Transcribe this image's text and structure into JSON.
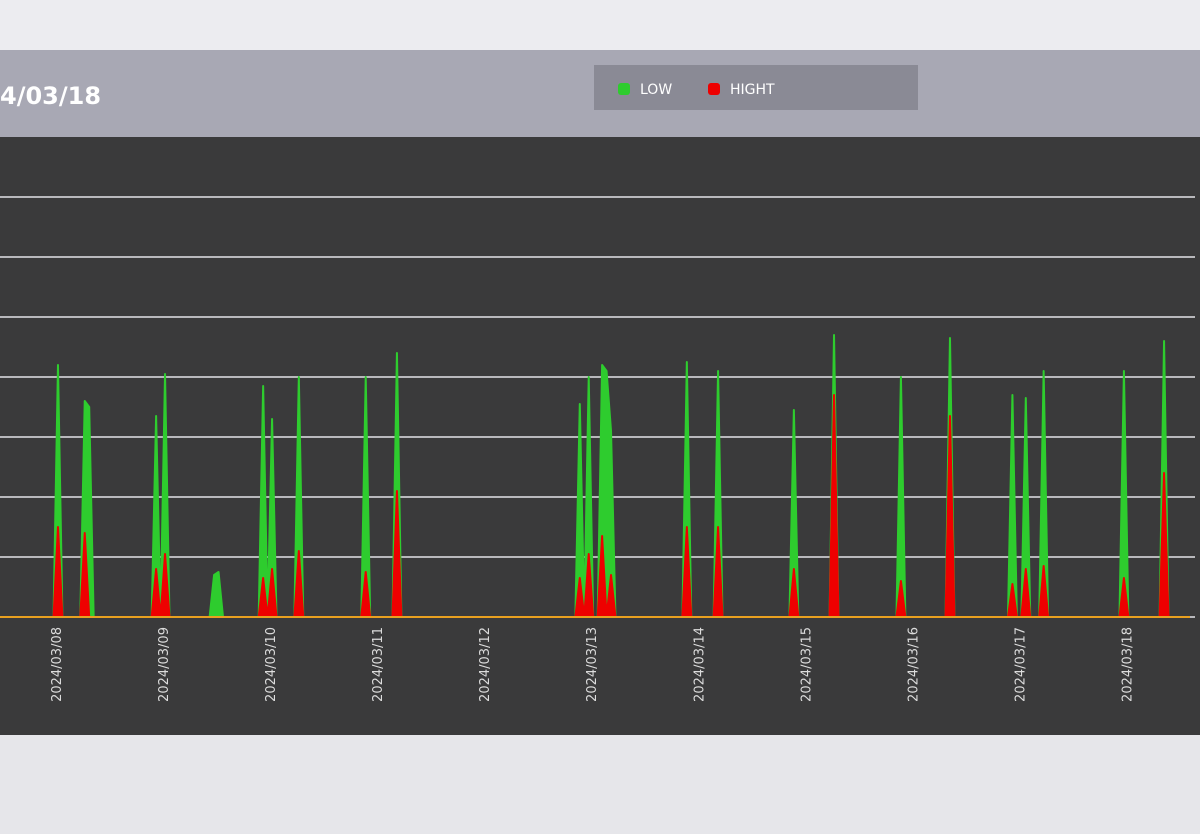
{
  "chart_data": {
    "type": "area",
    "title": "4/03/18",
    "categories": [
      null,
      null,
      null,
      null,
      null,
      null,
      null,
      null,
      null,
      null,
      null,
      null,
      "2024/03/08",
      null,
      null,
      null,
      null,
      null,
      null,
      null,
      null,
      null,
      null,
      null,
      null,
      null,
      null,
      null,
      null,
      null,
      null,
      null,
      null,
      null,
      null,
      null,
      "2024/03/09",
      null,
      null,
      null,
      null,
      null,
      null,
      null,
      null,
      null,
      null,
      null,
      null,
      null,
      null,
      null,
      null,
      null,
      null,
      null,
      null,
      null,
      null,
      null,
      "2024/03/10",
      null,
      null,
      null,
      null,
      null,
      null,
      null,
      null,
      null,
      null,
      null,
      null,
      null,
      null,
      null,
      null,
      null,
      null,
      null,
      null,
      null,
      null,
      null,
      "2024/03/11",
      null,
      null,
      null,
      null,
      null,
      null,
      null,
      null,
      null,
      null,
      null,
      null,
      null,
      null,
      null,
      null,
      null,
      null,
      null,
      null,
      null,
      null,
      null,
      "2024/03/12",
      null,
      null,
      null,
      null,
      null,
      null,
      null,
      null,
      null,
      null,
      null,
      null,
      null,
      null,
      null,
      null,
      null,
      null,
      null,
      null,
      null,
      null,
      null,
      "2024/03/13",
      null,
      null,
      null,
      null,
      null,
      null,
      null,
      null,
      null,
      null,
      null,
      null,
      null,
      null,
      null,
      null,
      null,
      null,
      null,
      null,
      null,
      null,
      null,
      "2024/03/14",
      null,
      null,
      null,
      null,
      null,
      null,
      null,
      null,
      null,
      null,
      null,
      null,
      null,
      null,
      null,
      null,
      null,
      null,
      null,
      null,
      null,
      null,
      null,
      "2024/03/15",
      null,
      null,
      null,
      null,
      null,
      null,
      null,
      null,
      null,
      null,
      null,
      null,
      null,
      null,
      null,
      null,
      null,
      null,
      null,
      null,
      null,
      null,
      null,
      "2024/03/16",
      null,
      null,
      null,
      null,
      null,
      null,
      null,
      null,
      null,
      null,
      null,
      null,
      null,
      null,
      null,
      null,
      null,
      null,
      null,
      null,
      null,
      null,
      null,
      "2024/03/17",
      null,
      null,
      null,
      null,
      null,
      null,
      null,
      null,
      null,
      null,
      null,
      null,
      null,
      null,
      null,
      null,
      null,
      null,
      null,
      null,
      null,
      null,
      null,
      "2024/03/18",
      null,
      null,
      null,
      null,
      null,
      null,
      null,
      null,
      null,
      null,
      null,
      null,
      null,
      null
    ],
    "series": [
      {
        "name": "LOW",
        "color": "#2ecc2e",
        "values": [
          0,
          0,
          0,
          0,
          0,
          0,
          0,
          0,
          0,
          0,
          0,
          0,
          0,
          4.2,
          0,
          0,
          0,
          0,
          0,
          3.6,
          3.5,
          0,
          0,
          0,
          0,
          0,
          0,
          0,
          0,
          0,
          0,
          0,
          0,
          0,
          0,
          3.35,
          0,
          4.05,
          0,
          0,
          0,
          0,
          0,
          0,
          0,
          0,
          0,
          0,
          0.7,
          0.75,
          0,
          0,
          0,
          0,
          0,
          0,
          0,
          0,
          0,
          3.85,
          0,
          3.3,
          0,
          0,
          0,
          0,
          0,
          4,
          0,
          0,
          0,
          0,
          0,
          0,
          0,
          0,
          0,
          0,
          0,
          0,
          0,
          0,
          4,
          0,
          0,
          0,
          0,
          0,
          0,
          4.4,
          0,
          0,
          0,
          0,
          0,
          0,
          0,
          0,
          0,
          0,
          0,
          0,
          0,
          0,
          0,
          0,
          0,
          0,
          0,
          0,
          0,
          0,
          0,
          0,
          0,
          0,
          0,
          0,
          0,
          0,
          0,
          0,
          0,
          0,
          0,
          0,
          0,
          0,
          0,
          0,
          3.55,
          0,
          4,
          0,
          0,
          4.2,
          4.1,
          3.1,
          0,
          0,
          0,
          0,
          0,
          0,
          0,
          0,
          0,
          0,
          0,
          0,
          0,
          0,
          0,
          0,
          4.25,
          0,
          0,
          0,
          0,
          0,
          0,
          4.1,
          0,
          0,
          0,
          0,
          0,
          0,
          0,
          0,
          0,
          0,
          0,
          0,
          0,
          0,
          0,
          0,
          3.45,
          0,
          0,
          0,
          0,
          0,
          0,
          0,
          0,
          4.7,
          0,
          0,
          0,
          0,
          0,
          0,
          0,
          0,
          0,
          0,
          0,
          0,
          0,
          0,
          4,
          0,
          0,
          0,
          0,
          0,
          0,
          0,
          0,
          0,
          0,
          4.65,
          0,
          0,
          0,
          0,
          0,
          0,
          0,
          0,
          0,
          0,
          0,
          0,
          0,
          3.7,
          0,
          0,
          3.65,
          0,
          0,
          0,
          4.1,
          0,
          0,
          0,
          0,
          0,
          0,
          0,
          0,
          0,
          0,
          0,
          0,
          0,
          0,
          0,
          0,
          0,
          4.1,
          0,
          0,
          0,
          0,
          0,
          0,
          0,
          0,
          4.6,
          0,
          0,
          0,
          0,
          0
        ]
      },
      {
        "name": "HIGHT",
        "color": "#ee0000",
        "values": [
          0,
          0,
          0,
          0,
          0,
          0,
          0,
          0,
          0,
          0,
          0,
          0,
          0,
          1.5,
          0,
          0,
          0,
          0,
          0,
          1.4,
          0,
          0,
          0,
          0,
          0,
          0,
          0,
          0,
          0,
          0,
          0,
          0,
          0,
          0,
          0,
          0.8,
          0,
          1.05,
          0,
          0,
          0,
          0,
          0,
          0,
          0,
          0,
          0,
          0,
          0,
          0,
          0,
          0,
          0,
          0,
          0,
          0,
          0,
          0,
          0,
          0.65,
          0,
          0.8,
          0,
          0,
          0,
          0,
          0,
          1.1,
          0,
          0,
          0,
          0,
          0,
          0,
          0,
          0,
          0,
          0,
          0,
          0,
          0,
          0,
          0.75,
          0,
          0,
          0,
          0,
          0,
          0,
          2.1,
          0,
          0,
          0,
          0,
          0,
          0,
          0,
          0,
          0,
          0,
          0,
          0,
          0,
          0,
          0,
          0,
          0,
          0,
          0,
          0,
          0,
          0,
          0,
          0,
          0,
          0,
          0,
          0,
          0,
          0,
          0,
          0,
          0,
          0,
          0,
          0,
          0,
          0,
          0,
          0,
          0.65,
          0,
          1.05,
          0,
          0,
          1.35,
          0,
          0.7,
          0,
          0,
          0,
          0,
          0,
          0,
          0,
          0,
          0,
          0,
          0,
          0,
          0,
          0,
          0,
          0,
          1.5,
          0,
          0,
          0,
          0,
          0,
          0,
          1.5,
          0,
          0,
          0,
          0,
          0,
          0,
          0,
          0,
          0,
          0,
          0,
          0,
          0,
          0,
          0,
          0,
          0.8,
          0,
          0,
          0,
          0,
          0,
          0,
          0,
          0,
          3.7,
          0,
          0,
          0,
          0,
          0,
          0,
          0,
          0,
          0,
          0,
          0,
          0,
          0,
          0,
          0.6,
          0,
          0,
          0,
          0,
          0,
          0,
          0,
          0,
          0,
          0,
          3.35,
          0,
          0,
          0,
          0,
          0,
          0,
          0,
          0,
          0,
          0,
          0,
          0,
          0,
          0.55,
          0,
          0,
          0.8,
          0,
          0,
          0,
          0.85,
          0,
          0,
          0,
          0,
          0,
          0,
          0,
          0,
          0,
          0,
          0,
          0,
          0,
          0,
          0,
          0,
          0,
          0.65,
          0,
          0,
          0,
          0,
          0,
          0,
          0,
          0,
          2.4,
          0,
          0,
          0,
          0,
          0
        ]
      }
    ],
    "ylim": [
      0,
      8
    ],
    "yticks": [
      0,
      1,
      2,
      3,
      4,
      5,
      6,
      7
    ],
    "grid": true
  }
}
